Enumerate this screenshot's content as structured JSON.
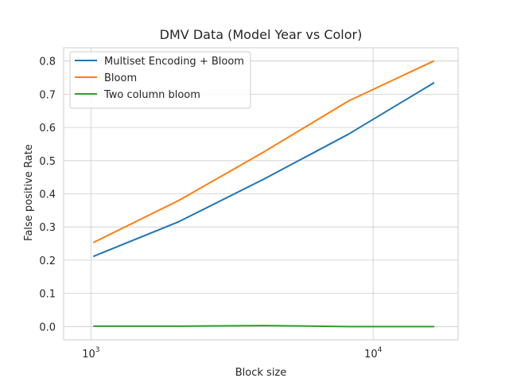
{
  "chart_data": {
    "type": "line",
    "title": "DMV Data (Model Year vs Color)",
    "xlabel": "Block size",
    "ylabel": "False positive Rate",
    "xscale": "log",
    "x": [
      1024,
      2048,
      4096,
      8192,
      16384
    ],
    "xlim": [
      800,
      20000
    ],
    "ylim": [
      -0.04,
      0.84
    ],
    "xticks": [
      {
        "value": 1000,
        "base": "10",
        "exp": "3"
      },
      {
        "value": 10000,
        "base": "10",
        "exp": "4"
      }
    ],
    "yticks": [
      0.0,
      0.1,
      0.2,
      0.3,
      0.4,
      0.5,
      0.6,
      0.7,
      0.8
    ],
    "ytick_labels": [
      "0.0",
      "0.1",
      "0.2",
      "0.3",
      "0.4",
      "0.5",
      "0.6",
      "0.7",
      "0.8"
    ],
    "grid": true,
    "legend_position": "top-left",
    "series": [
      {
        "name": "Multiset Encoding + Bloom",
        "color": "#1f77b4",
        "values": [
          0.212,
          0.316,
          0.444,
          0.58,
          0.734
        ]
      },
      {
        "name": "Bloom",
        "color": "#ff7f0e",
        "values": [
          0.254,
          0.38,
          0.526,
          0.68,
          0.8
        ]
      },
      {
        "name": "Two column bloom",
        "color": "#2ca02c",
        "values": [
          0.001,
          0.001,
          0.003,
          0.0,
          0.0
        ]
      }
    ]
  }
}
